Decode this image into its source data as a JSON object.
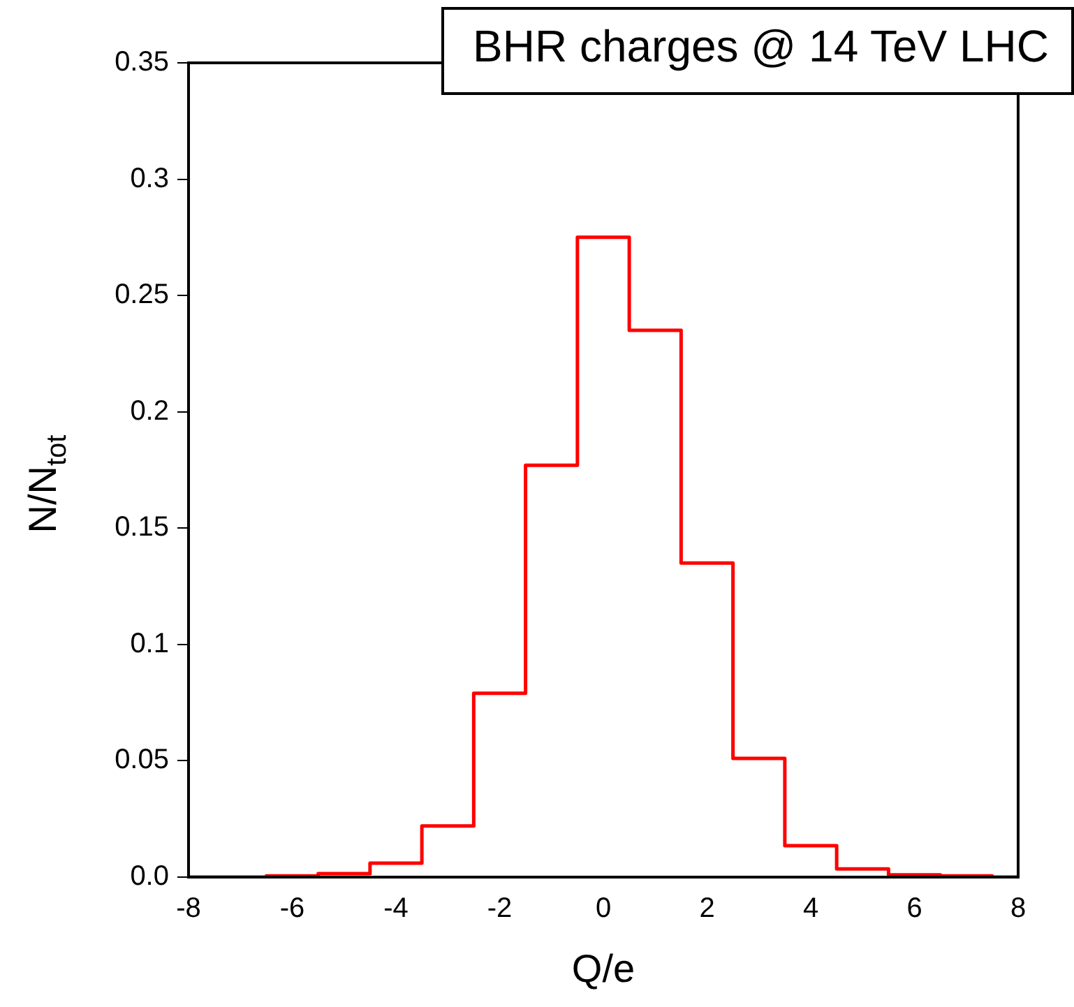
{
  "chart_data": {
    "type": "histogram",
    "xlabel": "Q/e",
    "ylabel": "N/N$_{tot}$",
    "annotations": [
      "BHR charges @ 14 TeV LHC"
    ],
    "bins": [
      -8,
      -7.5,
      -6.5,
      -5.5,
      -4.5,
      -3.5,
      -2.5,
      -1.5,
      -0.5,
      0.5,
      1.5,
      2.5,
      3.5,
      4.5,
      5.5,
      6.5,
      7.5,
      8
    ],
    "values": [
      0,
      0,
      0.0005,
      0.0015,
      0.006,
      0.022,
      0.079,
      0.177,
      0.275,
      0.235,
      0.135,
      0.051,
      0.0135,
      0.0035,
      0.001,
      0.0005,
      0
    ],
    "color": "#ff0000",
    "xlim": [
      -8,
      8
    ],
    "xticks": [
      -8,
      -6,
      -4,
      -2,
      0,
      2,
      4,
      6,
      8
    ],
    "ylim": [
      0,
      0.35
    ],
    "yticks": [
      {
        "value": 0,
        "label": "0.0"
      },
      0.05,
      0.1,
      0.15,
      0.2,
      0.25,
      0.3,
      0.35
    ],
    "grid": false,
    "legend": false
  }
}
